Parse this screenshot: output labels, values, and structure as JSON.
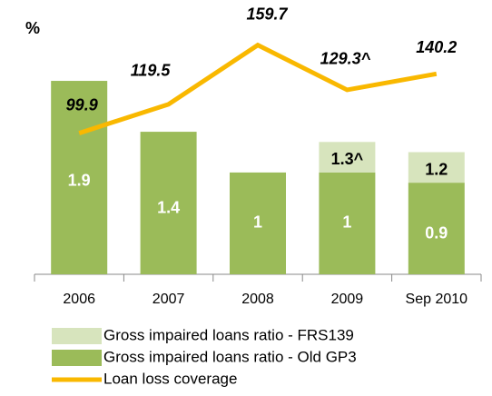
{
  "chart_data": {
    "type": "bar",
    "title": "%",
    "categories": [
      "2006",
      "2007",
      "2008",
      "2009",
      "Sep 2010"
    ],
    "stacked": true,
    "ylim": [
      0,
      2.4
    ],
    "y2lim": [
      4,
      170
    ],
    "series": [
      {
        "name": "Gross impaired loans ratio - Old GP3",
        "color": "#9bbb59",
        "values": [
          1.9,
          1.4,
          1.0,
          1.0,
          0.9
        ]
      },
      {
        "name": "Gross impaired loans ratio - FRS139",
        "color": "#d7e4bd",
        "values": [
          null,
          null,
          null,
          0.3,
          0.3
        ]
      },
      {
        "name": "Loan loss coverage",
        "type": "line",
        "axis": "y2",
        "color": "#f9b800",
        "values": [
          99.9,
          119.5,
          159.7,
          129.3,
          140.2
        ]
      }
    ],
    "annotations": [
      {
        "text": "1.3^",
        "index": 3
      },
      {
        "text": "1.2",
        "index": 4
      }
    ],
    "annotation_labels": [
      "129.3^"
    ]
  }
}
